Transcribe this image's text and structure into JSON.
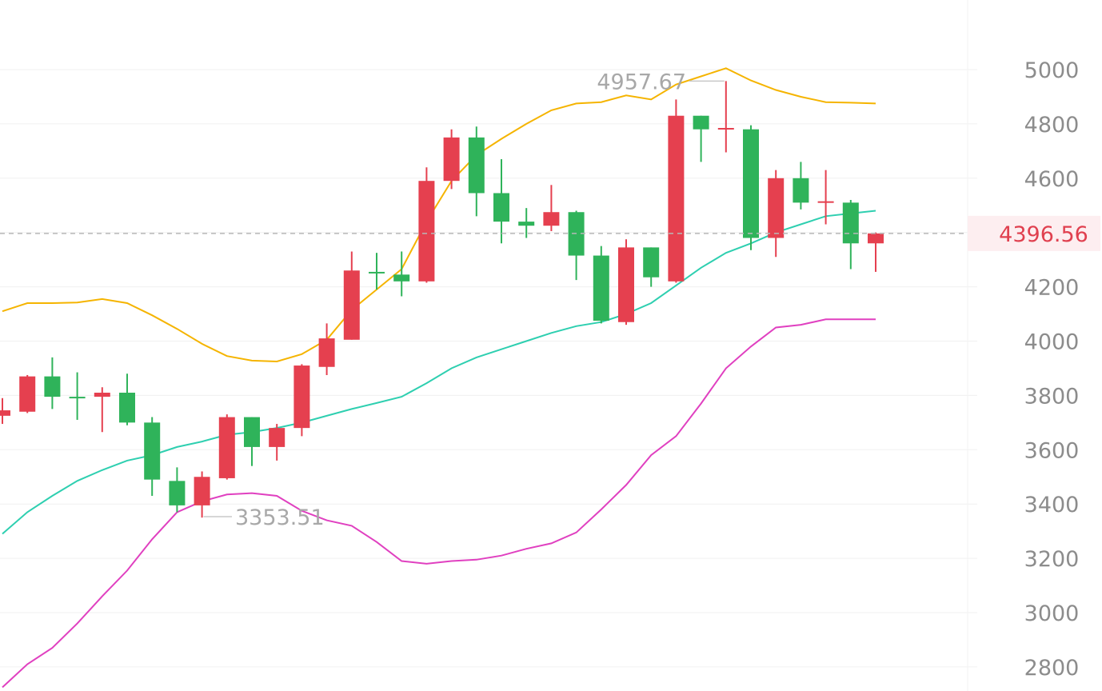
{
  "chart_data": {
    "type": "candlestick",
    "ylim": [
      2750,
      5250
    ],
    "y_ticks": [
      5000,
      4800,
      4600,
      4400,
      4200,
      4000,
      3800,
      3600,
      3400,
      3200,
      3000,
      2800
    ],
    "y_tick_labels": [
      "5000",
      "4800",
      "4600",
      "4400",
      "4200",
      "4000",
      "3800",
      "3600",
      "3400",
      "3200",
      "3000",
      "2800"
    ],
    "current_price": 4396.56,
    "current_price_label": "4396.56",
    "max_label": "4957.67",
    "min_label": "3353.51",
    "max_value": 4957.67,
    "min_value": 3353.51,
    "colors": {
      "up": "#e5404f",
      "down": "#2fb35a",
      "upper_band": "#f5b400",
      "middle_band": "#2ecfb0",
      "lower_band": "#e040c0",
      "grid": "#f0f0f0",
      "tick_text": "#8c8c8c",
      "price_line": "#b8b8b8",
      "price_tag_bg": "#fdeef0",
      "price_tag_text": "#e0404f"
    },
    "candles": [
      {
        "open": 3725,
        "high": 3790,
        "low": 3695,
        "close": 3745
      },
      {
        "open": 3740,
        "high": 3875,
        "low": 3735,
        "close": 3870
      },
      {
        "open": 3870,
        "high": 3940,
        "low": 3750,
        "close": 3795
      },
      {
        "open": 3795,
        "high": 3885,
        "low": 3710,
        "close": 3793
      },
      {
        "open": 3795,
        "high": 3830,
        "low": 3665,
        "close": 3810
      },
      {
        "open": 3810,
        "high": 3880,
        "low": 3690,
        "close": 3700
      },
      {
        "open": 3700,
        "high": 3720,
        "low": 3430,
        "close": 3490
      },
      {
        "open": 3485,
        "high": 3535,
        "low": 3370,
        "close": 3395
      },
      {
        "open": 3395,
        "high": 3520,
        "low": 3350,
        "close": 3500
      },
      {
        "open": 3495,
        "high": 3730,
        "low": 3490,
        "close": 3720
      },
      {
        "open": 3720,
        "high": 3720,
        "low": 3540,
        "close": 3610
      },
      {
        "open": 3610,
        "high": 3695,
        "low": 3560,
        "close": 3680
      },
      {
        "open": 3680,
        "high": 3915,
        "low": 3650,
        "close": 3910
      },
      {
        "open": 3905,
        "high": 4065,
        "low": 3875,
        "close": 4010
      },
      {
        "open": 4005,
        "high": 4330,
        "low": 4005,
        "close": 4260
      },
      {
        "open": 4255,
        "high": 4325,
        "low": 4190,
        "close": 4250
      },
      {
        "open": 4245,
        "high": 4330,
        "low": 4165,
        "close": 4220
      },
      {
        "open": 4220,
        "high": 4640,
        "low": 4215,
        "close": 4590
      },
      {
        "open": 4590,
        "high": 4780,
        "low": 4560,
        "close": 4750
      },
      {
        "open": 4750,
        "high": 4790,
        "low": 4460,
        "close": 4545
      },
      {
        "open": 4545,
        "high": 4670,
        "low": 4360,
        "close": 4440
      },
      {
        "open": 4440,
        "high": 4490,
        "low": 4380,
        "close": 4425
      },
      {
        "open": 4425,
        "high": 4575,
        "low": 4405,
        "close": 4475
      },
      {
        "open": 4475,
        "high": 4480,
        "low": 4225,
        "close": 4315
      },
      {
        "open": 4315,
        "high": 4350,
        "low": 4065,
        "close": 4075
      },
      {
        "open": 4070,
        "high": 4375,
        "low": 4060,
        "close": 4345
      },
      {
        "open": 4345,
        "high": 4345,
        "low": 4200,
        "close": 4235
      },
      {
        "open": 4220,
        "high": 4890,
        "low": 4215,
        "close": 4830
      },
      {
        "open": 4830,
        "high": 4830,
        "low": 4660,
        "close": 4780
      },
      {
        "open": 4780,
        "high": 4957.67,
        "low": 4695,
        "close": 4785
      },
      {
        "open": 4780,
        "high": 4795,
        "low": 4335,
        "close": 4380
      },
      {
        "open": 4380,
        "high": 4630,
        "low": 4310,
        "close": 4600
      },
      {
        "open": 4600,
        "high": 4660,
        "low": 4485,
        "close": 4510
      },
      {
        "open": 4510,
        "high": 4630,
        "low": 4430,
        "close": 4515
      },
      {
        "open": 4510,
        "high": 4520,
        "low": 4265,
        "close": 4360
      },
      {
        "open": 4360,
        "high": 4400,
        "low": 4255,
        "close": 4396.56
      }
    ],
    "upper_band": [
      4110,
      4140,
      4140,
      4142,
      4155,
      4140,
      4095,
      4045,
      3990,
      3945,
      3928,
      3925,
      3952,
      4005,
      4115,
      4190,
      4265,
      4440,
      4590,
      4685,
      4745,
      4800,
      4850,
      4875,
      4880,
      4905,
      4890,
      4945,
      4975,
      5005,
      4960,
      4925,
      4900,
      4880,
      4878,
      4875
    ],
    "middle_band": [
      3290,
      3370,
      3430,
      3485,
      3525,
      3560,
      3580,
      3610,
      3630,
      3655,
      3665,
      3680,
      3700,
      3725,
      3750,
      3772,
      3795,
      3845,
      3900,
      3940,
      3970,
      4000,
      4030,
      4055,
      4070,
      4100,
      4140,
      4205,
      4270,
      4325,
      4360,
      4400,
      4430,
      4460,
      4470,
      4480
    ],
    "lower_band": [
      2725,
      2810,
      2870,
      2960,
      3060,
      3155,
      3270,
      3370,
      3410,
      3435,
      3440,
      3430,
      3375,
      3340,
      3320,
      3260,
      3190,
      3180,
      3190,
      3195,
      3210,
      3235,
      3255,
      3295,
      3380,
      3470,
      3580,
      3650,
      3770,
      3900,
      3980,
      4050,
      4060,
      4080,
      4080,
      4080
    ]
  }
}
